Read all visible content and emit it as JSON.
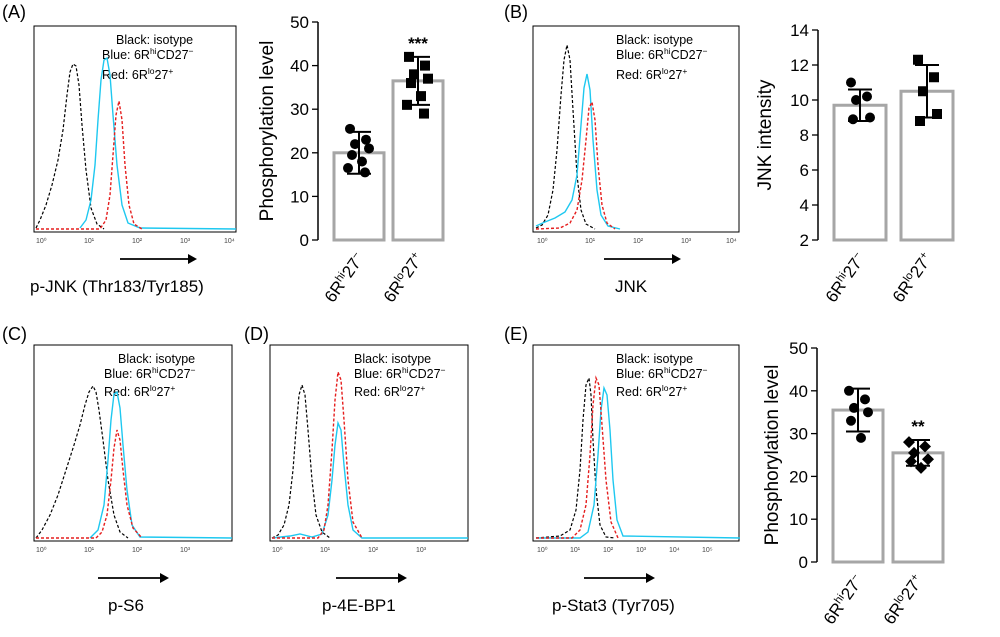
{
  "legend": {
    "black": "Black: isotype",
    "blue_prefix": "Blue: 6R",
    "hi": "hi",
    "blue_marker": "CD27",
    "minus": "−",
    "red_prefix": "Red: 6R",
    "lo": "lo",
    "red_suffix": "27",
    "plus": "+"
  },
  "ticks_log": [
    "10⁰",
    "10¹",
    "10²",
    "10³",
    "10⁴",
    "10⁵"
  ],
  "panels": {
    "A": {
      "label": "(A)",
      "xlabel": "p-JNK (Thr183/Tyr185)"
    },
    "B": {
      "label": "(B)",
      "xlabel": "JNK"
    },
    "C": {
      "label": "(C)",
      "xlabel": "p-S6"
    },
    "D": {
      "label": "(D)",
      "xlabel": "p-4E-BP1"
    },
    "E": {
      "label": "(E)",
      "xlabel": "p-Stat3 (Tyr705)"
    }
  },
  "chart_data": [
    {
      "type": "bar",
      "panel": "A",
      "ylabel": "Phosphorylation level",
      "ylim": [
        0,
        50
      ],
      "yticks": [
        0,
        10,
        20,
        30,
        40,
        50
      ],
      "categories": [
        {
          "base": "6R",
          "sup1": "hi",
          "mid": "27",
          "sup2": "−"
        },
        {
          "base": "6R",
          "sup1": "lo",
          "mid": "27",
          "sup2": "+"
        }
      ],
      "means": [
        20.0,
        36.5
      ],
      "errors": [
        4.8,
        5.5
      ],
      "points": [
        [
          25.5,
          23.0,
          22.0,
          21.0,
          19.5,
          18.0,
          16.5,
          15.5
        ],
        [
          42.0,
          40.0,
          38.0,
          37.0,
          36.0,
          33.0,
          31.0,
          29.0
        ]
      ],
      "markers": [
        "circle",
        "square"
      ],
      "significance": [
        null,
        "***"
      ]
    },
    {
      "type": "bar",
      "panel": "B",
      "ylabel": "JNK intensity",
      "ylim": [
        2,
        14
      ],
      "yticks": [
        2,
        4,
        6,
        8,
        10,
        12,
        14
      ],
      "categories": [
        {
          "base": "6R",
          "sup1": "hi",
          "mid": "27",
          "sup2": "−"
        },
        {
          "base": "6R",
          "sup1": "lo",
          "mid": "27",
          "sup2": "+"
        }
      ],
      "means": [
        9.7,
        10.5
      ],
      "errors": [
        0.9,
        1.5
      ],
      "points": [
        [
          11.0,
          10.2,
          10.0,
          9.0,
          8.9
        ],
        [
          12.3,
          11.3,
          10.5,
          9.2,
          8.8
        ]
      ],
      "markers": [
        "circle",
        "square"
      ],
      "significance": [
        null,
        null
      ]
    },
    {
      "type": "bar",
      "panel": "E",
      "ylabel": "Phosphorylation level",
      "ylim": [
        0,
        50
      ],
      "yticks": [
        0,
        10,
        20,
        30,
        40,
        50
      ],
      "categories": [
        {
          "base": "6R",
          "sup1": "hi",
          "mid": "27",
          "sup2": "−"
        },
        {
          "base": "6R",
          "sup1": "lo",
          "mid": "27",
          "sup2": "+"
        }
      ],
      "means": [
        35.5,
        25.5
      ],
      "errors": [
        5.0,
        3.0
      ],
      "points": [
        [
          40.0,
          38.0,
          36.0,
          35.0,
          33.0,
          29.0
        ],
        [
          28.0,
          27.0,
          25.5,
          24.0,
          23.5,
          22.0
        ]
      ],
      "markers": [
        "circle",
        "diamond"
      ],
      "significance": [
        null,
        "**"
      ]
    }
  ]
}
